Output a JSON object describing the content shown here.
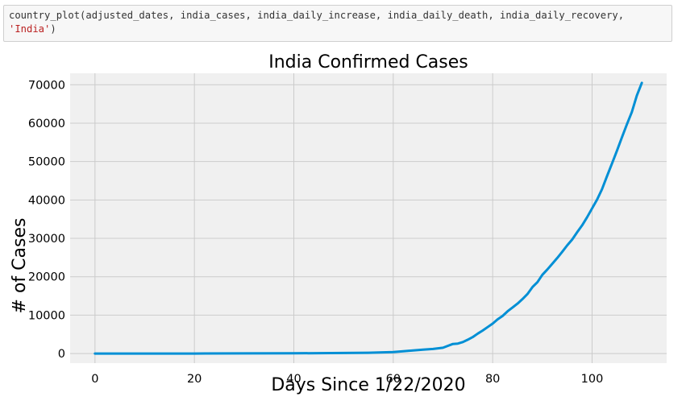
{
  "code_cell": {
    "line1": "country_plot(adjusted_dates, india_cases, india_daily_increase, india_daily_death, india_daily_recovery,",
    "line2_string": "'India'",
    "line2_rest": ")"
  },
  "chart_data": {
    "type": "line",
    "title": "India Confirmed Cases",
    "xlabel": "Days Since 1/22/2020",
    "ylabel": "# of Cases",
    "xlim": [
      -5,
      115
    ],
    "ylim": [
      -2500,
      73000
    ],
    "xticks": [
      0,
      20,
      40,
      60,
      80,
      100
    ],
    "yticks": [
      0,
      10000,
      20000,
      30000,
      40000,
      50000,
      60000,
      70000
    ],
    "grid": true,
    "colors": {
      "line": "#008fd5",
      "plot_bg": "#f0f0f0",
      "grid": "#cbcbcb"
    },
    "series": [
      {
        "x": [
          0,
          10,
          20,
          30,
          40,
          45,
          50,
          55,
          60,
          62,
          64,
          66,
          68,
          70,
          71,
          72,
          73,
          74,
          75,
          76,
          77,
          78,
          79,
          80,
          81,
          82,
          83,
          84,
          85,
          86,
          87,
          88,
          89,
          90,
          91,
          92,
          93,
          94,
          95,
          96,
          97,
          98,
          99,
          100,
          101,
          102,
          103,
          104,
          105,
          106,
          107,
          108,
          109,
          110
        ],
        "y": [
          0,
          3,
          3,
          28,
          50,
          100,
          150,
          200,
          400,
          600,
          800,
          1000,
          1200,
          1500,
          2000,
          2500,
          2600,
          3000,
          3600,
          4300,
          5200,
          6000,
          6900,
          7800,
          8900,
          9800,
          11000,
          12000,
          13000,
          14200,
          15500,
          17300,
          18600,
          20500,
          21900,
          23400,
          24900,
          26500,
          28200,
          29700,
          31600,
          33400,
          35500,
          37800,
          40100,
          42800,
          46200,
          49500,
          52800,
          56300,
          59700,
          62900,
          67200,
          70500
        ]
      }
    ]
  }
}
